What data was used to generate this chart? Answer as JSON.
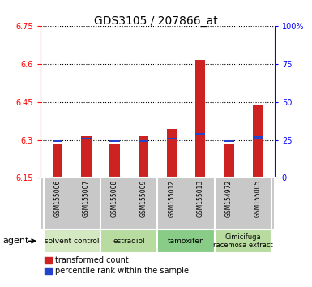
{
  "title": "GDS3105 / 207866_at",
  "samples": [
    "GSM155006",
    "GSM155007",
    "GSM155008",
    "GSM155009",
    "GSM155012",
    "GSM155013",
    "GSM154972",
    "GSM155005"
  ],
  "bar_values": [
    6.285,
    6.315,
    6.285,
    6.315,
    6.345,
    6.615,
    6.285,
    6.435
  ],
  "blue_values": [
    6.295,
    6.305,
    6.295,
    6.295,
    6.305,
    6.325,
    6.295,
    6.31
  ],
  "ylim_left": [
    6.15,
    6.75
  ],
  "yticks_left": [
    6.15,
    6.3,
    6.45,
    6.6,
    6.75
  ],
  "ylim_right": [
    0,
    100
  ],
  "yticks_right": [
    0,
    25,
    50,
    75,
    100
  ],
  "ytick_labels_right": [
    "0",
    "25",
    "50",
    "75",
    "100%"
  ],
  "bar_color": "#cc2222",
  "blue_color": "#2244cc",
  "bar_width": 0.35,
  "groups": [
    {
      "label": "solvent control",
      "start": 0,
      "end": 2
    },
    {
      "label": "estradiol",
      "start": 2,
      "end": 4
    },
    {
      "label": "tamoxifen",
      "start": 4,
      "end": 6
    },
    {
      "label": "Cimicifuga\nracemosa extract",
      "start": 6,
      "end": 8
    }
  ],
  "group_bg_colors": [
    "#d4e8c2",
    "#b8dba0",
    "#88cc88",
    "#b8dba0"
  ],
  "legend_red": "transformed count",
  "legend_blue": "percentile rank within the sample",
  "agent_label": "agent",
  "background_color": "#ffffff",
  "sample_bg_color": "#c8c8c8",
  "title_fontsize": 10,
  "tick_fontsize": 7,
  "sample_fontsize": 5.5,
  "group_fontsize": 6.5,
  "legend_fontsize": 7
}
